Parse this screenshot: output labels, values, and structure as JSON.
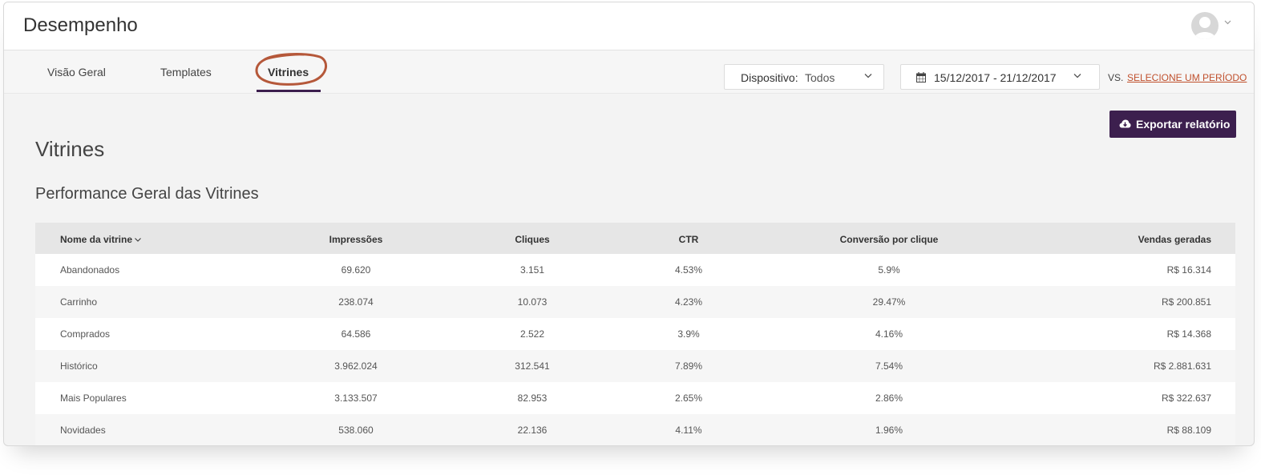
{
  "header": {
    "title": "Desempenho"
  },
  "tabs": [
    {
      "label": "Visão Geral",
      "active": false
    },
    {
      "label": "Templates",
      "active": false
    },
    {
      "label": "Vitrines",
      "active": true
    }
  ],
  "filters": {
    "device_label": "Dispositivo:",
    "device_value": "Todos",
    "date_range": "15/12/2017 - 21/12/2017",
    "vs_label": "VS.",
    "compare_link": "SELECIONE UM PERÍODO"
  },
  "actions": {
    "export_label": "Exportar relatório"
  },
  "page": {
    "title": "Vitrines",
    "section_title": "Performance Geral das Vitrines"
  },
  "table": {
    "columns": [
      "Nome da vitrine",
      "Impressões",
      "Cliques",
      "CTR",
      "Conversão por clique",
      "Vendas geradas"
    ],
    "rows": [
      [
        "Abandonados",
        "69.620",
        "3.151",
        "4.53%",
        "5.9%",
        "R$ 16.314"
      ],
      [
        "Carrinho",
        "238.074",
        "10.073",
        "4.23%",
        "29.47%",
        "R$ 200.851"
      ],
      [
        "Comprados",
        "64.586",
        "2.522",
        "3.9%",
        "4.16%",
        "R$ 14.368"
      ],
      [
        "Histórico",
        "3.962.024",
        "312.541",
        "7.89%",
        "7.54%",
        "R$ 2.881.631"
      ],
      [
        "Mais Populares",
        "3.133.507",
        "82.953",
        "2.65%",
        "2.86%",
        "R$ 322.637"
      ],
      [
        "Novidades",
        "538.060",
        "22.136",
        "4.11%",
        "1.96%",
        "R$ 88.109"
      ]
    ]
  },
  "colors": {
    "accent": "#3c1f4e",
    "link": "#c0502d",
    "highlight_circle": "#b5583a"
  }
}
